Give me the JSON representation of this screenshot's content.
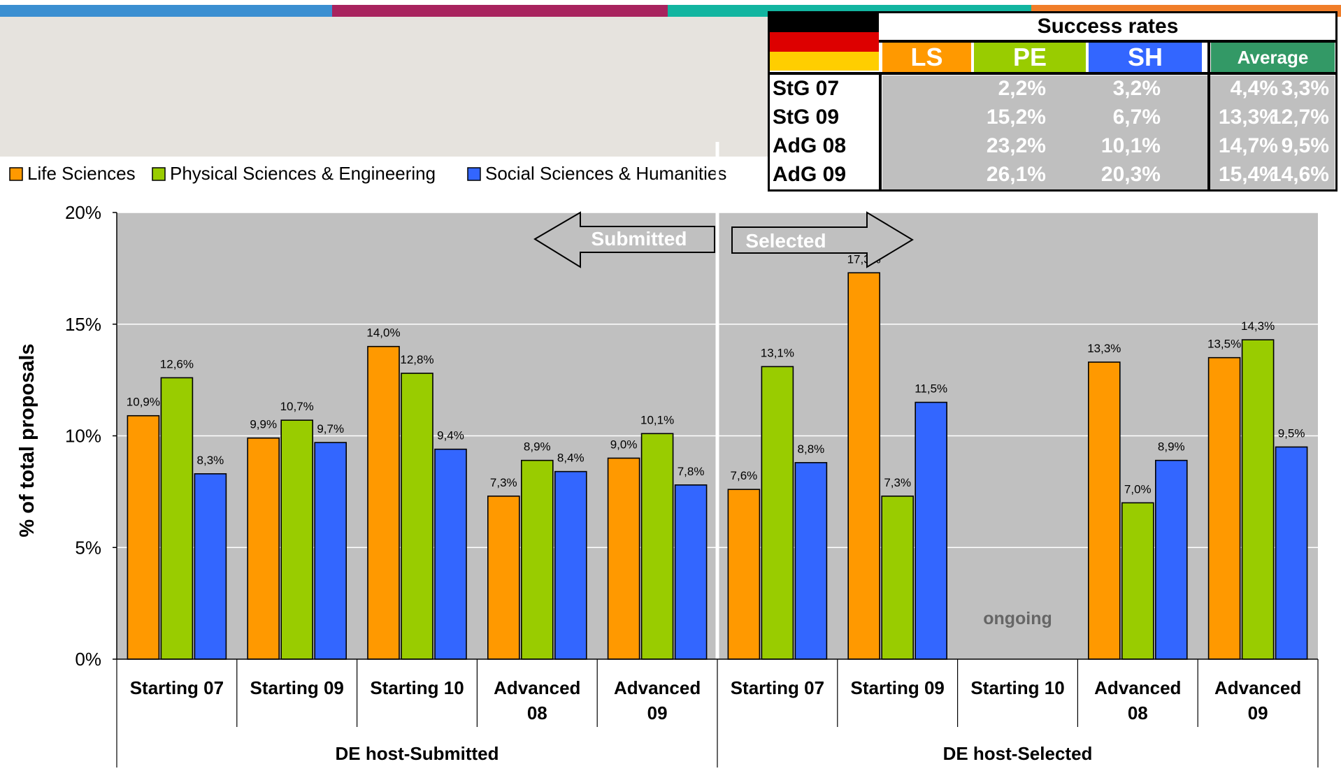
{
  "colors": {
    "life_sciences": "#ff9900",
    "physical_sciences": "#99cc00",
    "social_sciences": "#3366ff",
    "plot_background": "#c0c0c0",
    "topbar": [
      "#3b8fd1",
      "#a8235e",
      "#12b5a0",
      "#f07d29"
    ],
    "flag": [
      "#000000",
      "#dd0000",
      "#ffce00"
    ],
    "average_header": "#339966"
  },
  "success_table": {
    "title": "Success rates",
    "headers": [
      "LS",
      "PE",
      "SH",
      "Average"
    ],
    "rows": [
      {
        "label": "StG 07",
        "values": [
          "2,2%",
          "3,2%",
          "4,4%",
          "3,3%"
        ]
      },
      {
        "label": "StG 09",
        "values": [
          "15,2%",
          "6,7%",
          "13,3%",
          "12,7%"
        ]
      },
      {
        "label": "AdG 08",
        "values": [
          "23,2%",
          "10,1%",
          "14,7%",
          "9,5%"
        ]
      },
      {
        "label": "AdG 09",
        "values": [
          "26,1%",
          "20,3%",
          "15,4%",
          "14,6%"
        ]
      }
    ]
  },
  "chart_data": {
    "type": "bar",
    "ylabel": "% of total proposals",
    "ylim": [
      0,
      20
    ],
    "yticks": [
      "0%",
      "5%",
      "10%",
      "15%",
      "20%"
    ],
    "grid": true,
    "legend_position": "top-left",
    "arrows": {
      "submitted": "Submitted",
      "selected": "Selected"
    },
    "ongoing_label": "ongoing",
    "groups": [
      {
        "label": "DE host-Submitted",
        "categories": [
          "Starting 07",
          "Starting 09",
          "Starting 10",
          "Advanced 08",
          "Advanced 09"
        ]
      },
      {
        "label": "DE host-Selected",
        "categories": [
          "Starting 07",
          "Starting 09",
          "Starting 10",
          "Advanced 08",
          "Advanced 09"
        ]
      }
    ],
    "series": [
      {
        "name": "Life Sciences",
        "values": [
          10.9,
          9.9,
          14.0,
          7.3,
          9.0,
          7.6,
          17.3,
          null,
          13.3,
          13.5
        ],
        "labels": [
          "10,9%",
          "9,9%",
          "14,0%",
          "7,3%",
          "9,0%",
          "7,6%",
          "17,3%",
          "",
          "13,3%",
          "13,5%"
        ]
      },
      {
        "name": "Physical Sciences & Engineering",
        "values": [
          12.6,
          10.7,
          12.8,
          8.9,
          10.1,
          13.1,
          7.3,
          null,
          7.0,
          14.3
        ],
        "labels": [
          "12,6%",
          "10,7%",
          "12,8%",
          "8,9%",
          "10,1%",
          "13,1%",
          "7,3%",
          "",
          "7,0%",
          "14,3%"
        ]
      },
      {
        "name": "Social Sciences & Humanities",
        "values": [
          8.3,
          9.7,
          9.4,
          8.4,
          7.8,
          8.8,
          11.5,
          null,
          8.9,
          9.5
        ],
        "labels": [
          "8,3%",
          "9,7%",
          "9,4%",
          "8,4%",
          "7,8%",
          "8,8%",
          "11,5%",
          "",
          "8,9%",
          "9,5%"
        ]
      }
    ]
  }
}
